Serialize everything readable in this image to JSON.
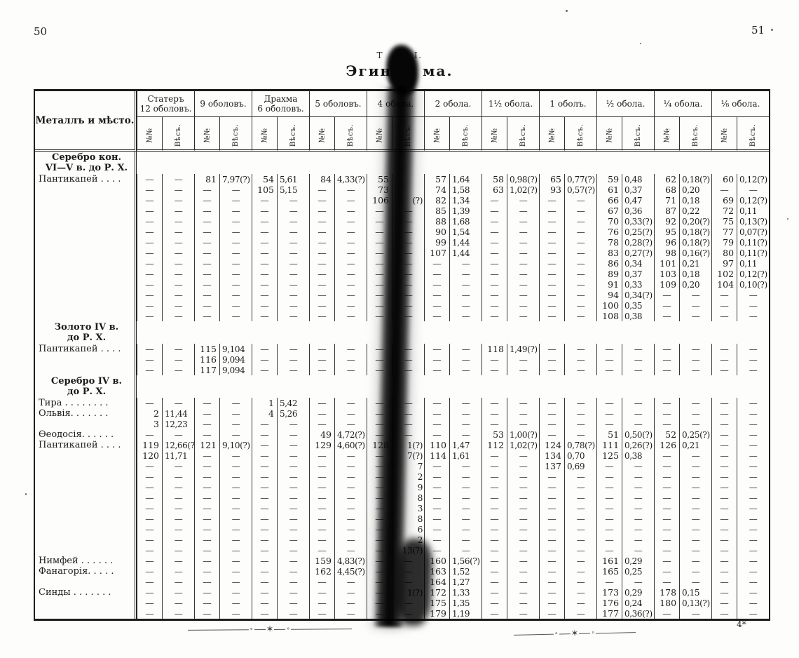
{
  "page": {
    "left_number": "50",
    "right_number": "51"
  },
  "title": {
    "caption_left": "Т",
    "caption_right": "I.",
    "heading_left": "Эгин",
    "heading_right": "ма."
  },
  "table": {
    "corner_header": "Металлъ и мѣсто.",
    "sub_headers": [
      "№№",
      "Вѣсъ."
    ],
    "dash": "—",
    "columns": [
      {
        "label": "Статеръ",
        "label2": "12 оболовъ."
      },
      {
        "label": "9 оболовъ."
      },
      {
        "label": "Драхма",
        "label2": "6 оболовъ."
      },
      {
        "label": "5 оболовъ."
      },
      {
        "label": "4 обола."
      },
      {
        "label": "2 обола."
      },
      {
        "label": "1½ обола."
      },
      {
        "label": "1 оболъ."
      },
      {
        "label": "½ обола."
      },
      {
        "label": "¼ обола."
      },
      {
        "label": "⅛ обола."
      }
    ],
    "sections": [
      {
        "heading": [
          "Серебро кон.",
          "VI—V в. до Р. Х."
        ],
        "rows": [
          {
            "label": "Пантикапей . . . .",
            "c": {
              "1": [
                "81",
                "7,97(?)"
              ],
              "2": [
                "54",
                "5,61"
              ],
              "3": [
                "84",
                "4,33(?)"
              ],
              "4": [
                "55",
                ""
              ],
              "5": [
                "57",
                "1,64"
              ],
              "6": [
                "58",
                "0,98(?)"
              ],
              "7": [
                "65",
                "0,77(?)"
              ],
              "8": [
                "59",
                "0,48"
              ],
              "9": [
                "62",
                "0,18(?)"
              ],
              "10": [
                "60",
                "0,12(?)"
              ]
            }
          },
          {
            "c": {
              "2": [
                "105",
                "5,15"
              ],
              "4": [
                "73",
                ""
              ],
              "5": [
                "74",
                "1,58"
              ],
              "6": [
                "63",
                "1,02(?)"
              ],
              "7": [
                "93",
                "0,57(?)"
              ],
              "8": [
                "61",
                "0,37"
              ],
              "9": [
                "68",
                "0,20"
              ]
            }
          },
          {
            "c": {
              "4": [
                "106",
                "~(?)"
              ],
              "5": [
                "82",
                "1,34"
              ],
              "8": [
                "66",
                "0,47"
              ],
              "9": [
                "71",
                "0,18"
              ],
              "10": [
                "69",
                "0,12(?)"
              ]
            }
          },
          {
            "c": {
              "5": [
                "85",
                "1,39"
              ],
              "8": [
                "67",
                "0,36"
              ],
              "9": [
                "87",
                "0,22"
              ],
              "10": [
                "72",
                "0,11"
              ]
            }
          },
          {
            "c": {
              "5": [
                "88",
                "1,68"
              ],
              "8": [
                "70",
                "0,33(?)"
              ],
              "9": [
                "92",
                "0,20(?)"
              ],
              "10": [
                "75",
                "0,13(?)"
              ]
            }
          },
          {
            "c": {
              "5": [
                "90",
                "1,54"
              ],
              "8": [
                "76",
                "0,25(?)"
              ],
              "9": [
                "95",
                "0,18(?)"
              ],
              "10": [
                "77",
                "0,07(?)"
              ]
            }
          },
          {
            "c": {
              "5": [
                "99",
                "1,44"
              ],
              "8": [
                "78",
                "0,28(?)"
              ],
              "9": [
                "96",
                "0,18(?)"
              ],
              "10": [
                "79",
                "0,11(?)"
              ]
            }
          },
          {
            "c": {
              "5": [
                "107",
                "1,44"
              ],
              "8": [
                "83",
                "0,27(?)"
              ],
              "9": [
                "98",
                "0,16(?)"
              ],
              "10": [
                "80",
                "0,11(?)"
              ]
            }
          },
          {
            "c": {
              "8": [
                "86",
                "0,34"
              ],
              "9": [
                "101",
                "0,21"
              ],
              "10": [
                "97",
                "0,11"
              ]
            }
          },
          {
            "c": {
              "8": [
                "89",
                "0,37"
              ],
              "9": [
                "103",
                "0,18"
              ],
              "10": [
                "102",
                "0,12(?)"
              ]
            }
          },
          {
            "c": {
              "8": [
                "91",
                "0,33"
              ],
              "9": [
                "109",
                "0,20"
              ],
              "10": [
                "104",
                "0,10(?)"
              ]
            }
          },
          {
            "c": {
              "8": [
                "94",
                "0,34(?)"
              ]
            }
          },
          {
            "c": {
              "8": [
                "100",
                "0,35"
              ]
            }
          },
          {
            "c": {
              "8": [
                "108",
                "0,38"
              ]
            }
          }
        ]
      },
      {
        "heading": [
          "Золото IV в.",
          "до Р. Х."
        ],
        "rows": [
          {
            "label": "Пантикапей . . . .",
            "c": {
              "1": [
                "115",
                "9,104"
              ],
              "6": [
                "118",
                "1,49(?)"
              ]
            }
          },
          {
            "c": {
              "1": [
                "116",
                "9,094"
              ]
            }
          },
          {
            "c": {
              "1": [
                "117",
                "9,094"
              ]
            }
          }
        ]
      },
      {
        "heading": [
          "Серебро IV в.",
          "до Р. Х."
        ],
        "rows": [
          {
            "label": "Тира . . . . . . . .",
            "c": {
              "2": [
                "1",
                "5,42"
              ]
            }
          },
          {
            "label": "Ольвія. . . . . . .",
            "c": {
              "0": [
                "2",
                "11,44"
              ],
              "2": [
                "4",
                "5,26"
              ]
            }
          },
          {
            "c": {
              "0": [
                "3",
                "12,23"
              ]
            }
          },
          {
            "label": "Ѳеодосія. . . . . .",
            "c": {
              "3": [
                "49",
                "4,72(?)"
              ],
              "6": [
                "53",
                "1,00(?)"
              ],
              "8": [
                "51",
                "0,50(?)"
              ],
              "9": [
                "52",
                "0,25(?)"
              ]
            }
          },
          {
            "label": "Пантикапей . . . .",
            "c": {
              "0": [
                "119",
                "12,66(?)"
              ],
              "1": [
                "121",
                "9,10(?)"
              ],
              "3": [
                "129",
                "4,60(?)"
              ],
              "4": [
                "128",
                "~1(?)"
              ],
              "5": [
                "110",
                "1,47"
              ],
              "6": [
                "112",
                "1,02(?)"
              ],
              "7": [
                "124",
                "0,78(?)"
              ],
              "8": [
                "111",
                "0,26(?)"
              ],
              "9": [
                "126",
                "0,21"
              ]
            }
          },
          {
            "c": {
              "0": [
                "120",
                "11,71"
              ],
              "4": [
                "—",
                "~7(?)"
              ],
              "5": [
                "114",
                "1,61"
              ],
              "7": [
                "134",
                "0,70"
              ],
              "8": [
                "125",
                "0,38"
              ]
            }
          },
          {
            "c": {
              "4": [
                "—",
                "~7"
              ],
              "7": [
                "137",
                "0,69"
              ]
            }
          },
          {
            "c": {
              "4": [
                "—",
                "~2"
              ]
            }
          },
          {
            "c": {
              "4": [
                "—",
                "~9"
              ]
            }
          },
          {
            "c": {
              "4": [
                "—",
                "~8"
              ]
            }
          },
          {
            "c": {
              "4": [
                "—",
                "~3"
              ]
            }
          },
          {
            "c": {
              "4": [
                "—",
                "~8"
              ]
            }
          },
          {
            "c": {
              "4": [
                "—",
                "~6"
              ]
            }
          },
          {
            "c": {
              "4": [
                "—",
                "~2"
              ]
            }
          },
          {
            "c": {
              "4": [
                "—",
                "~13(?)"
              ]
            }
          },
          {
            "label": "Нимфей . . . . . .",
            "c": {
              "3": [
                "159",
                "4,83(?)"
              ],
              "5": [
                "160",
                "1,56(?)"
              ],
              "8": [
                "161",
                "0,29"
              ]
            }
          },
          {
            "label": "Фанагорія. . . . .",
            "c": {
              "3": [
                "162",
                "4,45(?)"
              ],
              "5": [
                "163",
                "1,52"
              ],
              "8": [
                "165",
                "0,25"
              ]
            }
          },
          {
            "c": {
              "5": [
                "164",
                "1,27"
              ]
            }
          },
          {
            "label": "Синды . . . . . . .",
            "c": {
              "4": [
                "—",
                "~1(?)"
              ],
              "5": [
                "172",
                "1,33"
              ],
              "8": [
                "173",
                "0,29"
              ],
              "9": [
                "178",
                "0,15"
              ]
            }
          },
          {
            "c": {
              "5": [
                "175",
                "1,35"
              ],
              "8": [
                "176",
                "0,24"
              ],
              "9": [
                "180",
                "0,13(?)"
              ]
            }
          },
          {
            "c": {
              "5": [
                "179",
                "1,19"
              ],
              "8": [
                "177",
                "0,36(?)"
              ]
            }
          }
        ]
      }
    ]
  },
  "footer": {
    "ornament_circle": "∘",
    "ornament_star": "✶",
    "signature": "4*"
  }
}
